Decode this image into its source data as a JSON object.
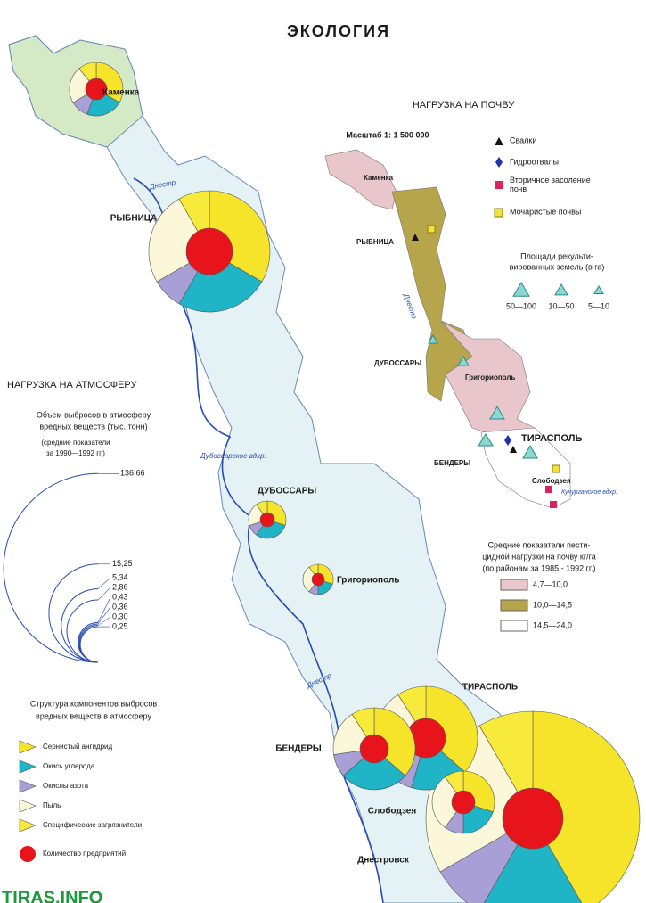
{
  "title": "ЭКОЛОГИЯ",
  "atmosphere": {
    "heading": "НАГРУЗКА НА АТМОСФЕРУ",
    "volume_title": [
      "Объем выбросов в атмосферу",
      "вредных веществ (тыс. тонн)"
    ],
    "period": [
      "(средние показатели",
      "за 1990—1992 гг.)"
    ],
    "scale": [
      {
        "value": 136.66,
        "label": "136,66"
      },
      {
        "value": 15.25,
        "label": "15,25"
      },
      {
        "value": 5.34,
        "label": "5,34"
      },
      {
        "value": 2.86,
        "label": "2,86"
      },
      {
        "value": 0.43,
        "label": "0,43"
      },
      {
        "value": 0.36,
        "label": "0,36"
      },
      {
        "value": 0.3,
        "label": "0,30"
      },
      {
        "value": 0.25,
        "label": "0,25"
      }
    ]
  },
  "structure": {
    "title": [
      "Структура компонентов выбросов",
      "вредных веществ в атмосферу"
    ],
    "items": [
      {
        "label": "Сернистый ангидрид",
        "color": "#f5e42a"
      },
      {
        "label": "Окись углерода",
        "color": "#1fb5c6"
      },
      {
        "label": "Окислы азота",
        "color": "#a79fd6"
      },
      {
        "label": "Пыль",
        "color": "#fbf7d8"
      },
      {
        "label": "Специфические загрязнители",
        "color": "#f8ea3a"
      },
      {
        "label": "Количество предприятий",
        "color": "#e8141c"
      }
    ]
  },
  "main_map": {
    "cities": [
      "Каменка",
      "РЫБНИЦА",
      "ДУБОССАРЫ",
      "Григориополь",
      "ТИРАСПОЛЬ",
      "БЕНДЕРЫ",
      "Слободзея",
      "Днестровск"
    ],
    "water": [
      "Днестр",
      "Днестр",
      "Дубоссарское вдхр."
    ]
  },
  "soil": {
    "heading": "НАГРУЗКА НА ПОЧВУ",
    "scale": "Масштаб 1: 1 500 000",
    "symbols": [
      "Свалки",
      "Гидроотвалы",
      "Вторичное засоление почв",
      "Мочаристые почвы"
    ],
    "reclaimed_title": [
      "Площади рекульти-",
      "вированных земель (в га)"
    ],
    "reclaimed_classes": [
      "50—100",
      "10—50",
      "5—10"
    ],
    "pesticide_title": [
      "Средние показатели пести-",
      "цидной нагрузки на почву кг/га",
      "(по районам за 1985 - 1992 гг.)"
    ],
    "pesticide_classes": [
      {
        "label": "4,7—10,0",
        "color": "#e9c6cb"
      },
      {
        "label": "10,0—14,5",
        "color": "#b6a54a"
      },
      {
        "label": "14,5—24,0",
        "color": "#ffffff"
      }
    ],
    "cities": [
      "Каменка",
      "РЫБНИЦА",
      "ДУБОССАРЫ",
      "Григориополь",
      "ТИРАСПОЛЬ",
      "БЕНДЕРЫ",
      "Слободзея"
    ],
    "water": [
      "Днестр",
      "Кучурганское вдхр."
    ]
  },
  "watermark": "TIRAS.INFO"
}
